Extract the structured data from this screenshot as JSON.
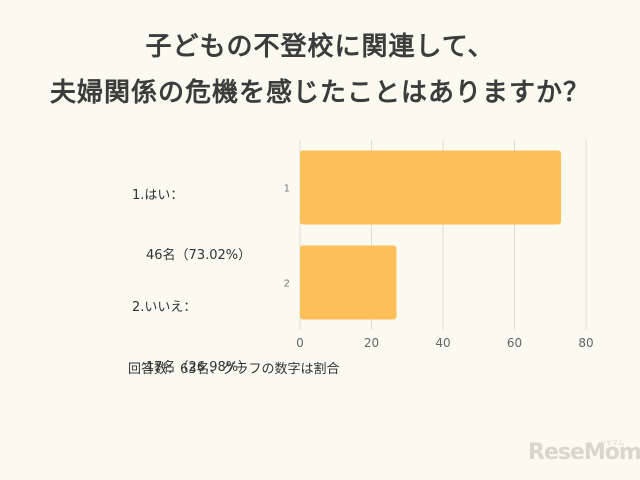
{
  "title_line1": "子どもの不登校に関連して、",
  "title_line2": "夫婦関係の危機を感じたことはありますか？",
  "categories": [
    {
      "label": "1.はい：",
      "sublabel": "46名（73.02%）",
      "axis_label": "1"
    },
    {
      "label": "2.いいえ：",
      "sublabel": "17名（26.98%）",
      "axis_label": "2"
    }
  ],
  "footnote": "回答数：63名、グラフの数字は割合",
  "logo_text": "ReseMom",
  "logo_small": "リセマム",
  "colors": {
    "bar": "#fdbf5a",
    "grid": "#dcdcdc",
    "background": "#fbfaf0"
  },
  "chart_data": {
    "type": "bar",
    "orientation": "horizontal",
    "categories": [
      "1",
      "2"
    ],
    "values": [
      73.02,
      26.98
    ],
    "xlim": [
      0,
      80
    ],
    "xticks": [
      0,
      20,
      40,
      60,
      80
    ],
    "grid": true,
    "title": "子どもの不登校に関連して、夫婦関係の危機を感じたことはありますか？"
  }
}
